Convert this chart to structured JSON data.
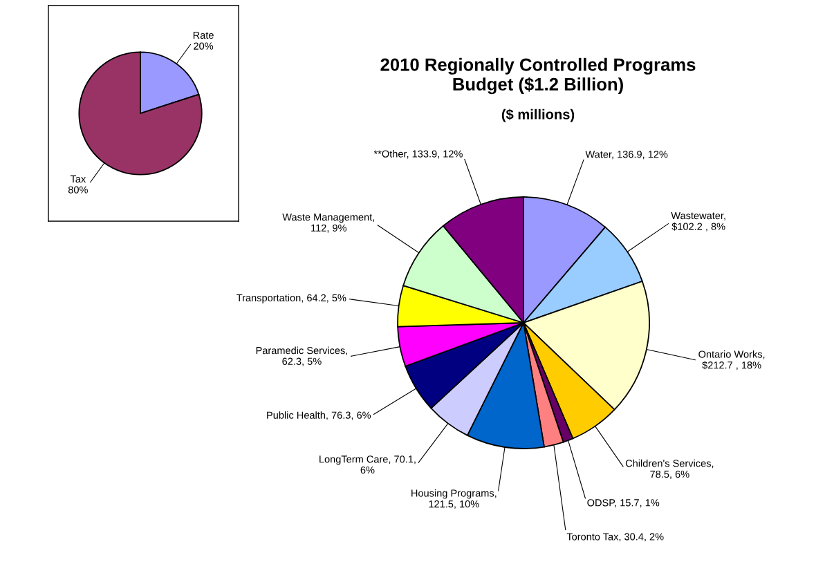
{
  "chart_data": [
    {
      "type": "pie",
      "categories": [
        "Rate",
        "Tax"
      ],
      "values": [
        20,
        80
      ],
      "value_labels": [
        "\n20%",
        "\n80%"
      ],
      "colors": [
        "#9999ff",
        "#993366"
      ],
      "legend": false
    },
    {
      "type": "pie",
      "title": "2010 Regionally Controlled Programs\nBudget ($1.2 Billion)",
      "subtitle": "($ millions)",
      "categories": [
        "Water",
        "Wastewater",
        "Ontario Works",
        "Children's Services",
        "ODSP",
        "Toronto Tax",
        "Housing Programs",
        "LongTerm Care",
        "Public Health",
        "Paramedic Services",
        "Transportation",
        "Waste Management",
        "**Other"
      ],
      "values": [
        136.9,
        102.2,
        212.7,
        78.5,
        15.7,
        30.4,
        121.5,
        70.1,
        76.3,
        62.3,
        64.2,
        112,
        133.9
      ],
      "value_labels": [
        ", 136.9, 12%",
        ",\n$102.2 , 8%",
        ",\n$212.7 , 18%",
        ",\n78.5, 6%",
        ", 15.7, 1%",
        ", 30.4, 2%",
        ",\n121.5, 10%",
        ", 70.1,\n6%",
        ", 76.3, 6%",
        ",\n62.3, 5%",
        ", 64.2, 5%",
        ",\n112, 9%",
        ", 133.9, 12%"
      ],
      "colors": [
        "#9999ff",
        "#99ccff",
        "#ffffcc",
        "#ffcc00",
        "#660066",
        "#ff8080",
        "#0066cc",
        "#ccccff",
        "#000080",
        "#ff00ff",
        "#ffff00",
        "#ccffcc",
        "#800080"
      ],
      "legend": false
    }
  ]
}
